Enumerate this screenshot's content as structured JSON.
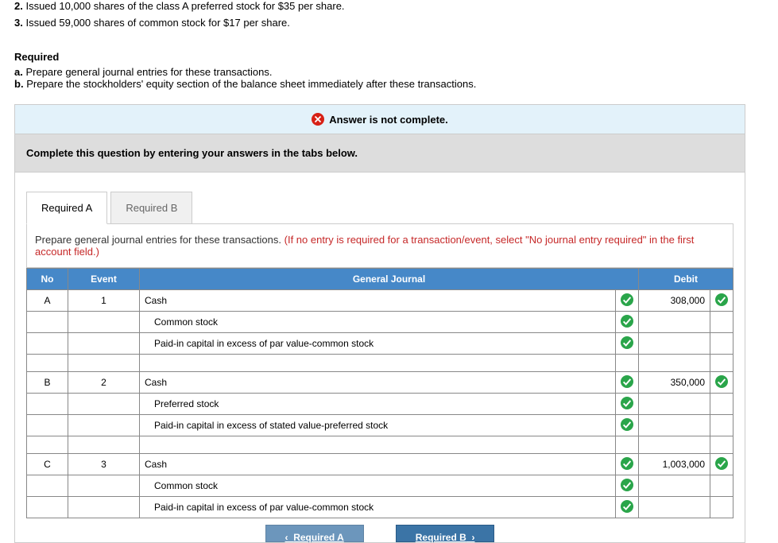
{
  "questions": [
    {
      "num": "2.",
      "text": "Issued 10,000 shares of the class A preferred stock for $35 per share."
    },
    {
      "num": "3.",
      "text": "Issued 59,000 shares of common stock for $17 per share."
    }
  ],
  "required": {
    "header": "Required",
    "a": {
      "label": "a.",
      "text": "Prepare general journal entries for these transactions."
    },
    "b": {
      "label": "b.",
      "text": "Prepare the stockholders' equity section of the balance sheet immediately after these transactions."
    }
  },
  "banner": {
    "text": "Answer is not complete."
  },
  "completeBar": "Complete this question by entering your answers in the tabs below.",
  "tabs": {
    "a": "Required A",
    "b": "Required B"
  },
  "instruction": {
    "black": "Prepare general journal entries for these transactions. ",
    "red": "(If no entry is required for a transaction/event, select \"No journal entry required\" in the first account field.)"
  },
  "columns": {
    "no": "No",
    "event": "Event",
    "gj": "General Journal",
    "debit": "Debit"
  },
  "rows": [
    {
      "no": "A",
      "event": "1",
      "gj": "Cash",
      "indent": 0,
      "check": true,
      "debit": "308,000",
      "debitCheck": true
    },
    {
      "no": "",
      "event": "",
      "gj": "Common stock",
      "indent": 1,
      "check": true,
      "debit": "",
      "debitCheck": false
    },
    {
      "no": "",
      "event": "",
      "gj": "Paid-in capital in excess of par value-common stock",
      "indent": 1,
      "check": true,
      "debit": "",
      "debitCheck": false
    },
    {
      "no": "",
      "event": "",
      "gj": "",
      "indent": 0,
      "check": false,
      "debit": "",
      "debitCheck": false
    },
    {
      "no": "B",
      "event": "2",
      "gj": "Cash",
      "indent": 0,
      "check": true,
      "debit": "350,000",
      "debitCheck": true
    },
    {
      "no": "",
      "event": "",
      "gj": "Preferred stock",
      "indent": 1,
      "check": true,
      "debit": "",
      "debitCheck": false
    },
    {
      "no": "",
      "event": "",
      "gj": "Paid-in capital in excess of stated value-preferred stock",
      "indent": 1,
      "check": true,
      "debit": "",
      "debitCheck": false
    },
    {
      "no": "",
      "event": "",
      "gj": "",
      "indent": 0,
      "check": false,
      "debit": "",
      "debitCheck": false
    },
    {
      "no": "C",
      "event": "3",
      "gj": "Cash",
      "indent": 0,
      "check": true,
      "debit": "1,003,000",
      "debitCheck": true
    },
    {
      "no": "",
      "event": "",
      "gj": "Common stock",
      "indent": 1,
      "check": true,
      "debit": "",
      "debitCheck": false
    },
    {
      "no": "",
      "event": "",
      "gj": "Paid-in capital in excess of par value-common stock",
      "indent": 1,
      "check": true,
      "debit": "",
      "debitCheck": false
    }
  ],
  "navBtns": {
    "prev": "Required A",
    "next": "Required B"
  },
  "colors": {
    "headerBg": "#4688c8",
    "bannerBg": "#e3f2fa",
    "redIcon": "#d72116",
    "greenIcon": "#2aa54a",
    "navBg": "#3b74a6"
  }
}
